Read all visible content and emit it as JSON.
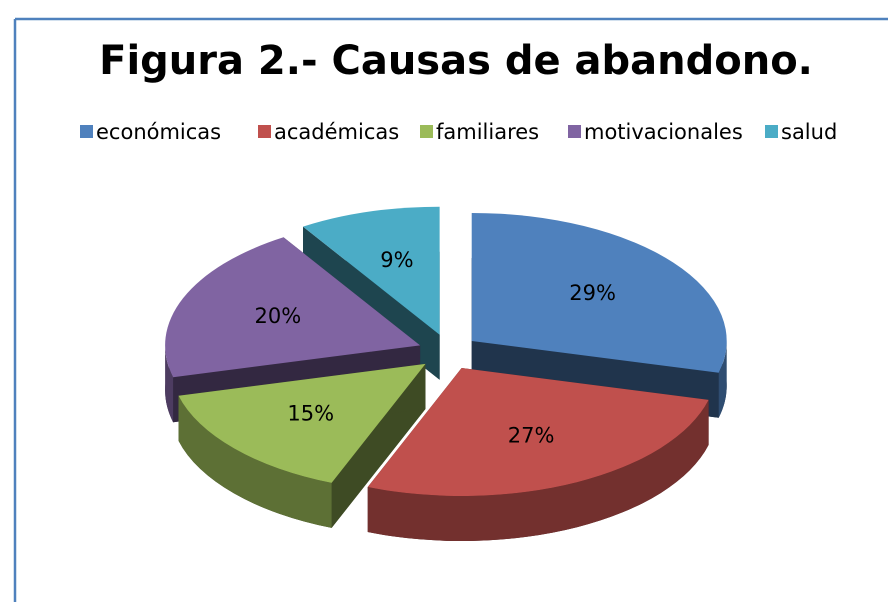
{
  "chart_data": {
    "type": "pie3d",
    "title": "Figura 2.- Causas de abandono.",
    "categories": [
      "económicas",
      "académicas",
      "familiares",
      "motivacionales",
      "salud"
    ],
    "values": [
      29,
      27,
      15,
      20,
      9
    ],
    "value_labels": [
      "29%",
      "27%",
      "15%",
      "20%",
      "9%"
    ],
    "colors": [
      "#4f81bd",
      "#c0504d",
      "#9bbb59",
      "#8064a2",
      "#4bacc6"
    ],
    "legend": "top"
  }
}
